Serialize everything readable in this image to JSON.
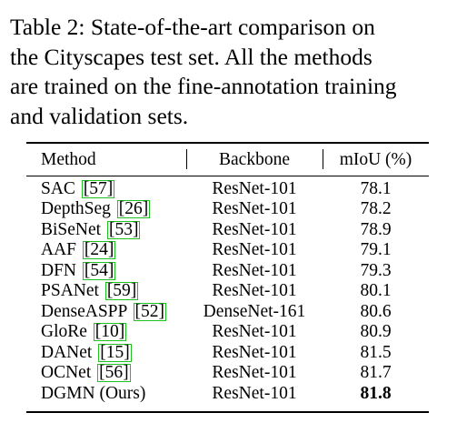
{
  "caption": {
    "lines": [
      "Table 2:  State-of-the-art comparison on",
      "the Cityscapes test set.  All the methods",
      "are trained on the fine-annotation training",
      "and validation sets."
    ]
  },
  "table": {
    "headers": {
      "method": "Method",
      "backbone": "Backbone",
      "miou": "mIoU (%)"
    },
    "rows": [
      {
        "method": "SAC",
        "ref": "[57]",
        "backbone": "ResNet-101",
        "miou": "78.1"
      },
      {
        "method": "DepthSeg",
        "ref": "[26]",
        "backbone": "ResNet-101",
        "miou": "78.2"
      },
      {
        "method": "BiSeNet",
        "ref": "[53]",
        "backbone": "ResNet-101",
        "miou": "78.9"
      },
      {
        "method": "AAF",
        "ref": "[24]",
        "backbone": "ResNet-101",
        "miou": "79.1"
      },
      {
        "method": "DFN",
        "ref": "[54]",
        "backbone": "ResNet-101",
        "miou": "79.3"
      },
      {
        "method": "PSANet",
        "ref": "[59]",
        "backbone": "ResNet-101",
        "miou": "80.1"
      },
      {
        "method": "DenseASPP",
        "ref": "[52]",
        "backbone": "DenseNet-161",
        "miou": "80.6"
      },
      {
        "method": "GloRe",
        "ref": "[10]",
        "backbone": "ResNet-101",
        "miou": "80.9"
      },
      {
        "method": "DANet",
        "ref": "[15]",
        "backbone": "ResNet-101",
        "miou": "81.5"
      },
      {
        "method": "OCNet",
        "ref": "[56]",
        "backbone": "ResNet-101",
        "miou": "81.7"
      },
      {
        "method": "DGMN (Ours)",
        "ref": "",
        "backbone": "ResNet-101",
        "miou": "81.8",
        "best": true
      }
    ],
    "citation_box_color": "#1ec21e"
  }
}
